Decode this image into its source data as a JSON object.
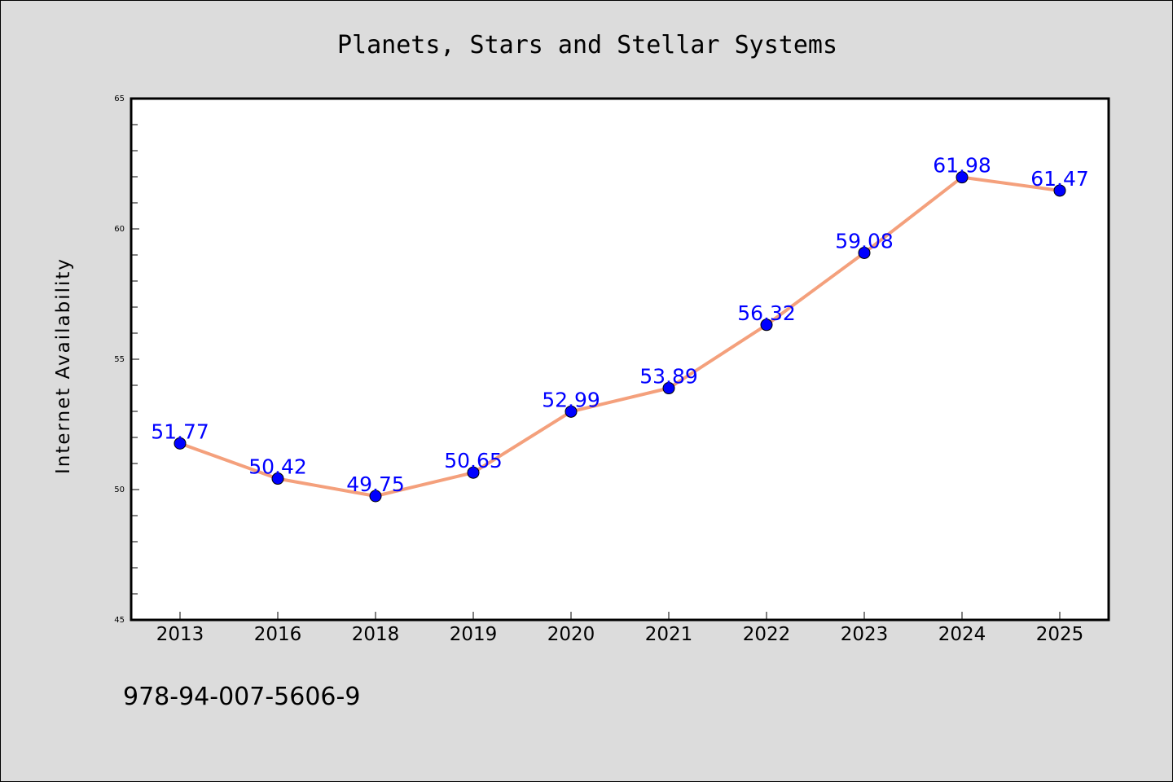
{
  "chart_data": {
    "type": "line",
    "title": "Planets, Stars and Stellar Systems",
    "xlabel": "",
    "ylabel": "Internet Availability",
    "categories": [
      "2013",
      "2016",
      "2018",
      "2019",
      "2020",
      "2021",
      "2022",
      "2023",
      "2024",
      "2025"
    ],
    "series": [
      {
        "values": [
          51.77,
          50.42,
          49.75,
          50.65,
          52.99,
          53.89,
          56.32,
          59.08,
          61.98,
          61.47
        ],
        "labels": [
          "51.77",
          "50.42",
          "49.75",
          "50.65",
          "52.99",
          "53.89",
          "56.32",
          "59.08",
          "61.98",
          "61.47"
        ],
        "line_color": "#f4a07c",
        "marker_color": "#0000ff"
      }
    ],
    "ylim": [
      45,
      65
    ],
    "yticks": [
      45,
      50,
      55,
      60,
      65
    ],
    "ytick_labels": [
      "45",
      "50",
      "55",
      "60",
      "65"
    ],
    "grid": false,
    "plot_background": "#ffffff",
    "figure_background": "#dcdcdc"
  },
  "footer": {
    "text": "978-94-007-5606-9"
  }
}
